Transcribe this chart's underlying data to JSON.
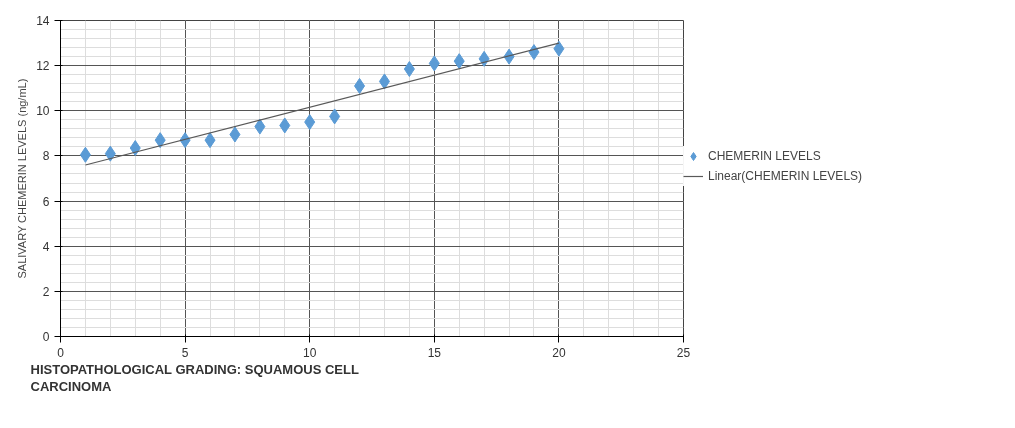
{
  "chart_data": {
    "type": "scatter",
    "xlabel": "HISTOPATHOLOGICAL GRADING: SQUAMOUS CELL\nCARCINOMA",
    "ylabel": "SALIVARY CHEMERIN LEVELS (ng/mL)",
    "x": [
      1,
      2,
      3,
      4,
      5,
      6,
      7,
      8,
      9,
      10,
      11,
      12,
      13,
      14,
      15,
      16,
      17,
      18,
      19,
      20
    ],
    "series": [
      {
        "name": "CHEMERIN LEVELS",
        "color": "#5b9bd5",
        "marker": "diamond",
        "values": [
          8.05,
          8.1,
          8.35,
          8.7,
          8.7,
          8.7,
          8.95,
          9.3,
          9.35,
          9.5,
          9.75,
          11.1,
          11.3,
          11.85,
          12.1,
          12.2,
          12.3,
          12.4,
          12.6,
          12.75
        ]
      },
      {
        "name": "Linear(CHEMERIN LEVELS)",
        "type": "line",
        "color": "#595959",
        "x": [
          1,
          20
        ],
        "values": [
          7.6,
          13.0
        ]
      }
    ],
    "xlim": [
      0,
      25
    ],
    "xticks": [
      0,
      5,
      10,
      15,
      20,
      25
    ],
    "ylim": [
      0,
      14
    ],
    "yticks": [
      0,
      2,
      4,
      6,
      8,
      10,
      12,
      14
    ],
    "grid": true,
    "legend": "right"
  }
}
